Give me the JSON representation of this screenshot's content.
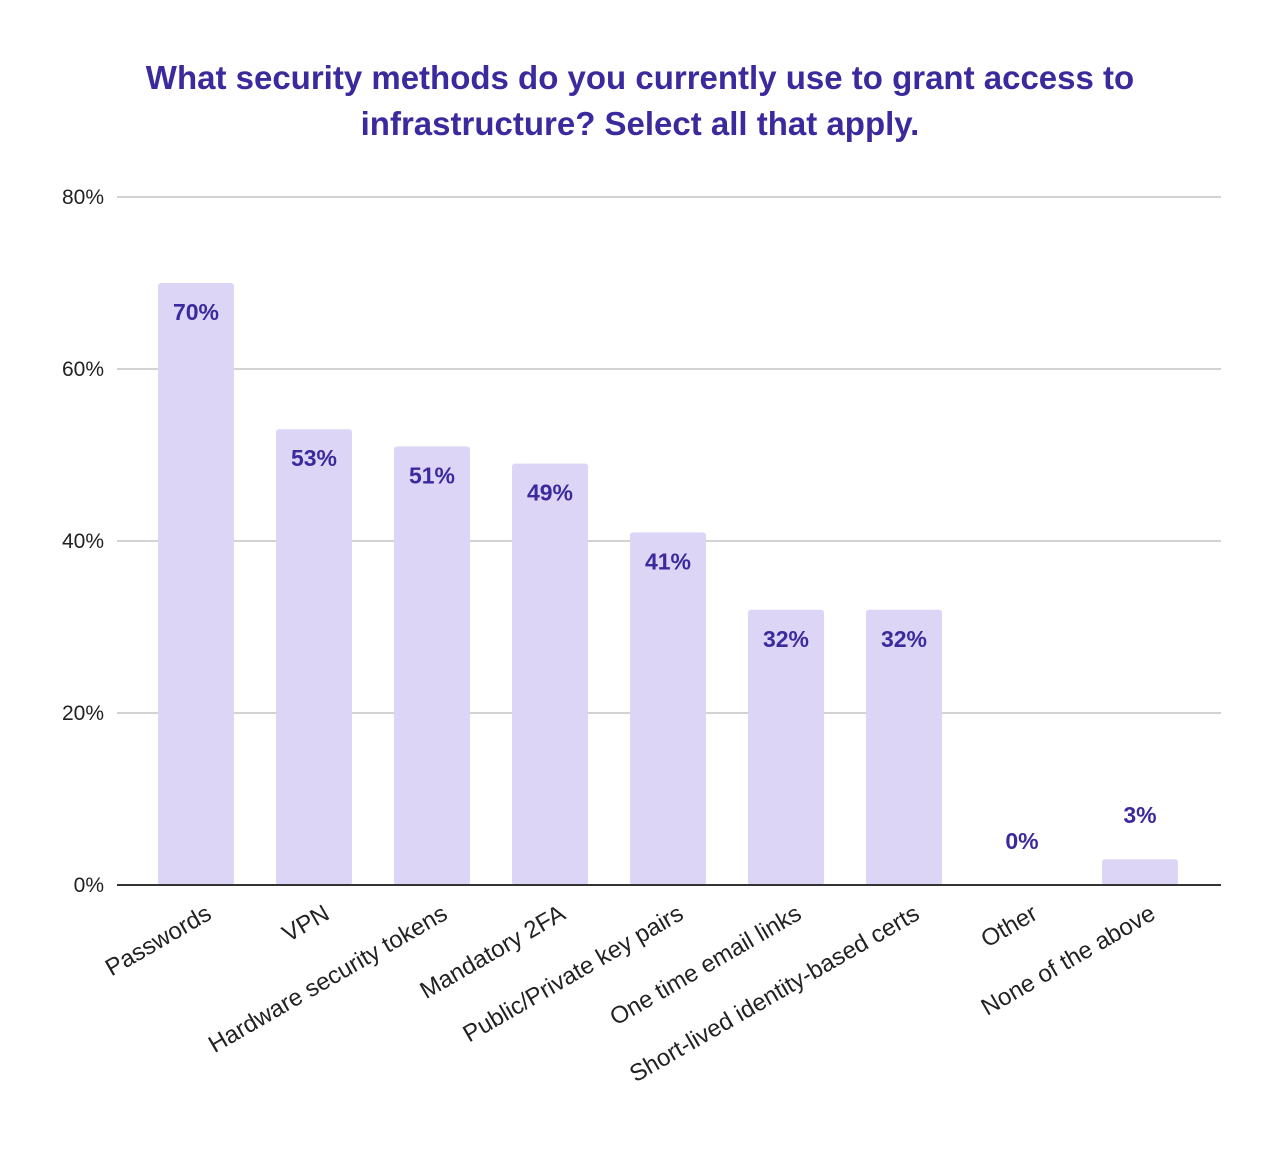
{
  "chart_data": {
    "type": "bar",
    "title": "What security methods do you currently use to grant access to infrastructure? Select all that apply.",
    "categories": [
      "Passwords",
      "VPN",
      "Hardware security tokens",
      "Mandatory 2FA",
      "Public/Private key pairs",
      "One time email links",
      "Short-lived identity-based certs",
      "Other",
      "None of the above"
    ],
    "values": [
      70,
      53,
      51,
      49,
      41,
      32,
      32,
      0,
      3
    ],
    "data_labels": [
      "70%",
      "53%",
      "51%",
      "49%",
      "41%",
      "32%",
      "32%",
      "0%",
      "3%"
    ],
    "y_ticks": [
      "0%",
      "20%",
      "40%",
      "60%",
      "80%"
    ],
    "ylim": [
      0,
      80
    ],
    "xlabel": "",
    "ylabel": "",
    "grid": true,
    "legend": "none",
    "colors": {
      "bar": "#dcd5f5",
      "title": "#3b2a9e",
      "data_label": "#3b2a9e",
      "grid": "#c4c4c4",
      "axis": "#333333"
    }
  }
}
